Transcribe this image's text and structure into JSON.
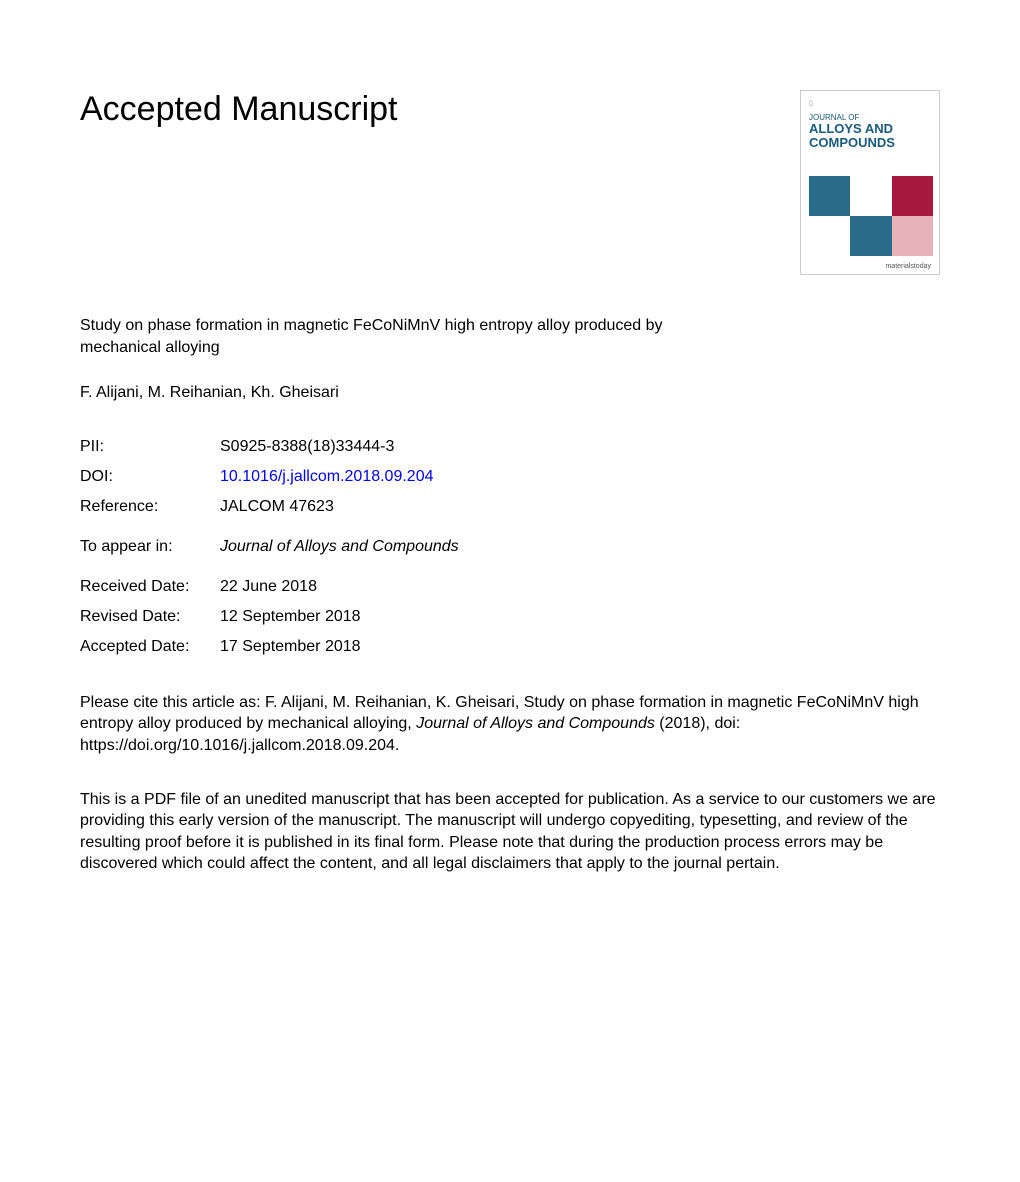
{
  "heading": "Accepted Manuscript",
  "article_title": "Study on phase formation in magnetic FeCoNiMnV high entropy alloy produced by mechanical alloying",
  "authors": "F. Alijani, M. Reihanian, Kh. Gheisari",
  "journal_cover": {
    "journal_of": "JOURNAL OF",
    "title_line1": "ALLOYS AND",
    "title_line2": "COMPOUNDS",
    "footer": "materialstoday",
    "colors": {
      "teal": "#2a6b8a",
      "maroon": "#a8183e",
      "pink": "#e8b0b8",
      "white": "#ffffff",
      "title_color": "#1a5a7a"
    }
  },
  "metadata": {
    "pii_label": "PII:",
    "pii_value": "S0925-8388(18)33444-3",
    "doi_label": "DOI:",
    "doi_value": "10.1016/j.jallcom.2018.09.204",
    "reference_label": "Reference:",
    "reference_value": "JALCOM 47623",
    "appear_label": "To appear in:",
    "appear_value": "Journal of Alloys and Compounds",
    "received_label": "Received Date:",
    "received_value": "22 June 2018",
    "revised_label": "Revised Date:",
    "revised_value": "12 September 2018",
    "accepted_label": "Accepted Date:",
    "accepted_value": "17 September 2018"
  },
  "citation": {
    "prefix": "Please cite this article as: F. Alijani, M. Reihanian, K. Gheisari, Study on phase formation in magnetic FeCoNiMnV high entropy alloy produced by mechanical alloying, ",
    "journal": "Journal of Alloys and Compounds",
    "suffix": " (2018), doi: https://doi.org/10.1016/j.jallcom.2018.09.204."
  },
  "disclaimer": "This is a PDF file of an unedited manuscript that has been accepted for publication. As a service to our customers we are providing this early version of the manuscript. The manuscript will undergo copyediting, typesetting, and review of the resulting proof before it is published in its final form. Please note that during the production process errors may be discovered which could affect the content, and all legal disclaimers that apply to the journal pertain."
}
